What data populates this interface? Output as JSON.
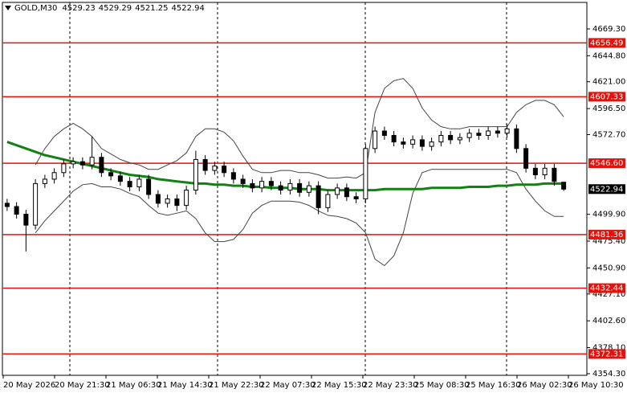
{
  "chart_data": {
    "type": "candlestick",
    "symbol": "GOLD,M30",
    "open": [
      4510,
      4507,
      4500,
      4490,
      4528,
      4532,
      4538,
      4546,
      4548,
      4545,
      4552,
      4538,
      4535,
      4530,
      4525,
      4532,
      4518,
      4510,
      4514,
      4508,
      4522,
      4550,
      4540,
      4544,
      4538,
      4532,
      4528,
      4524,
      4530,
      4526,
      4522,
      4528,
      4520,
      4526,
      4506,
      4518,
      4524,
      4516,
      4514,
      4560,
      4576,
      4572,
      4566,
      4564,
      4568,
      4562,
      4566,
      4572,
      4568,
      4570,
      4574,
      4572,
      4576,
      4574,
      4578,
      4560,
      4542,
      4536,
      4542,
      4529.23
    ],
    "high": [
      4514,
      4511,
      4504,
      4532,
      4536,
      4542,
      4550,
      4552,
      4552,
      4571,
      4556,
      4542,
      4539,
      4534,
      4536,
      4536,
      4522,
      4518,
      4518,
      4526,
      4558,
      4554,
      4548,
      4548,
      4542,
      4536,
      4532,
      4534,
      4534,
      4530,
      4532,
      4532,
      4530,
      4530,
      4522,
      4528,
      4528,
      4520,
      4564,
      4580,
      4580,
      4576,
      4570,
      4572,
      4572,
      4570,
      4576,
      4576,
      4574,
      4578,
      4578,
      4580,
      4580,
      4582,
      4582,
      4564,
      4546,
      4546,
      4546,
      4529.29
    ],
    "low": [
      4503,
      4496,
      4466,
      4486,
      4524,
      4528,
      4534,
      4542,
      4541,
      4541,
      4534,
      4531,
      4526,
      4521,
      4521,
      4514,
      4506,
      4506,
      4503,
      4504,
      4518,
      4536,
      4536,
      4534,
      4528,
      4524,
      4520,
      4520,
      4522,
      4518,
      4518,
      4516,
      4516,
      4500,
      4502,
      4514,
      4512,
      4510,
      4510,
      4556,
      4568,
      4562,
      4560,
      4560,
      4558,
      4558,
      4562,
      4564,
      4564,
      4566,
      4568,
      4568,
      4570,
      4570,
      4556,
      4538,
      4532,
      4532,
      4526,
      4521.25
    ],
    "close": [
      4507,
      4500,
      4490,
      4528,
      4532,
      4538,
      4546,
      4548,
      4545,
      4552,
      4538,
      4535,
      4530,
      4525,
      4532,
      4518,
      4510,
      4514,
      4508,
      4522,
      4550,
      4540,
      4544,
      4538,
      4532,
      4528,
      4524,
      4530,
      4526,
      4522,
      4528,
      4520,
      4526,
      4506,
      4518,
      4524,
      4516,
      4514,
      4560,
      4576,
      4572,
      4566,
      4564,
      4568,
      4562,
      4566,
      4572,
      4568,
      4570,
      4574,
      4572,
      4576,
      4574,
      4578,
      4560,
      4542,
      4536,
      4542,
      4530,
      4522.94
    ],
    "upper_band": [
      null,
      null,
      null,
      4545,
      4560,
      4571,
      4578,
      4583,
      4578,
      4571,
      4560,
      4555,
      4550,
      4547,
      4545,
      4541,
      4541,
      4545,
      4549,
      4556,
      4571,
      4578,
      4578,
      4575,
      4567,
      4553,
      4541,
      4538,
      4538,
      4540,
      4540,
      4538,
      4538,
      4536,
      4533,
      4533,
      4534,
      4533,
      4538,
      4593,
      4615,
      4622,
      4624,
      4615,
      4597,
      4586,
      4580,
      4578,
      4578,
      4580,
      4580,
      4580,
      4580,
      4580,
      4593,
      4600,
      4604,
      4604,
      4600,
      4589
    ],
    "lower_band": [
      null,
      null,
      null,
      4483,
      4494,
      4503,
      4512,
      4521,
      4527,
      4528,
      4525,
      4525,
      4523,
      4519,
      4516,
      4508,
      4501,
      4499,
      4501,
      4503,
      4496,
      4483,
      4475,
      4475,
      4477,
      4486,
      4501,
      4508,
      4512,
      4512,
      4512,
      4511,
      4508,
      4503,
      4499,
      4498,
      4496,
      4492,
      4483,
      4459,
      4453,
      4462,
      4483,
      4519,
      4538,
      4541,
      4541,
      4541,
      4541,
      4541,
      4541,
      4541,
      4541,
      4541,
      4538,
      4523,
      4512,
      4503,
      4498,
      4498
    ],
    "moving_average": [
      4566,
      4563,
      4560,
      4557,
      4554,
      4552,
      4550,
      4548,
      4546,
      4544,
      4542,
      4540,
      4538,
      4536,
      4535,
      4534,
      4532,
      4531,
      4530,
      4529,
      4528,
      4528,
      4527,
      4527,
      4526,
      4526,
      4525,
      4525,
      4524,
      4524,
      4524,
      4523,
      4523,
      4523,
      4522,
      4522,
      4522,
      4522,
      4522,
      4522,
      4523,
      4523,
      4523,
      4523,
      4523,
      4524,
      4524,
      4524,
      4524,
      4525,
      4525,
      4525,
      4526,
      4526,
      4527,
      4527,
      4527,
      4528,
      4528,
      4528
    ],
    "ma_color": "#138013",
    "band_color": "#444444",
    "level_color": "#e3120b",
    "ylim": [
      4352.8,
      4693.5
    ],
    "yticks": [
      {
        "value": 4669.3,
        "label": "4669.30"
      },
      {
        "value": 4644.8,
        "label": "4644.80"
      },
      {
        "value": 4621,
        "label": "4621.00"
      },
      {
        "value": 4596.5,
        "label": "4596.50"
      },
      {
        "value": 4572.7,
        "label": "4572.70"
      },
      {
        "value": 4499.9,
        "label": "4499.90"
      },
      {
        "value": 4475.4,
        "label": "4475.40"
      },
      {
        "value": 4450.9,
        "label": "4450.90"
      },
      {
        "value": 4427.1,
        "label": "4427.10"
      },
      {
        "value": 4402.6,
        "label": "4402.60"
      },
      {
        "value": 4378.1,
        "label": "4378.10"
      },
      {
        "value": 4354.3,
        "label": "4354.30"
      }
    ],
    "levels": [
      {
        "value": 4656.49,
        "label": "4656.49"
      },
      {
        "value": 4607.33,
        "label": "4607.33"
      },
      {
        "value": 4546.6,
        "label": "4546.60"
      },
      {
        "value": 4481.36,
        "label": "4481.36"
      },
      {
        "value": 4432.44,
        "label": "4432.44"
      },
      {
        "value": 4372.31,
        "label": "4372.31"
      }
    ],
    "time_labels": [
      "20 May 2026",
      "20 May 21:30",
      "21 May 06:30",
      "21 May 14:30",
      "21 May 22:30",
      "22 May 07:30",
      "22 May 15:30",
      "22 May 23:30",
      "25 May 08:30",
      "25 May 16:30",
      "26 May 02:30",
      "26 May 10:30"
    ]
  }
}
